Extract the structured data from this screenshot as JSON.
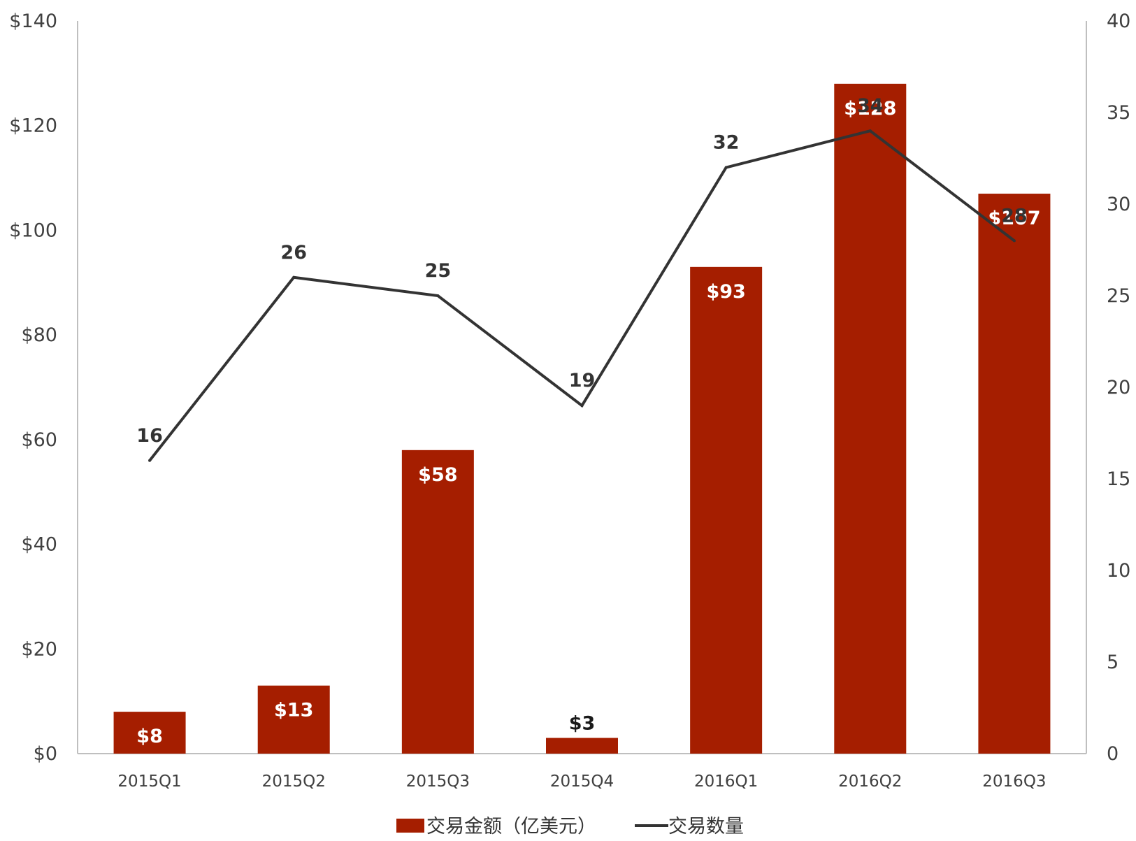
{
  "chart_data": {
    "type": "bar",
    "categories": [
      "2015Q1",
      "2015Q2",
      "2015Q3",
      "2015Q4",
      "2016Q1",
      "2016Q2",
      "2016Q3"
    ],
    "series": [
      {
        "name": "交易金额（亿美元）",
        "type": "bar",
        "axis": "left",
        "values": [
          8,
          13,
          58,
          3,
          93,
          128,
          107
        ],
        "labels": [
          "$8",
          "$13",
          "$58",
          "$3",
          "$93",
          "$128",
          "$107"
        ],
        "color": "#a51e00"
      },
      {
        "name": "交易数量",
        "type": "line",
        "axis": "right",
        "values": [
          16,
          26,
          25,
          19,
          32,
          34,
          28
        ],
        "labels": [
          "16",
          "26",
          "25",
          "19",
          "32",
          "34",
          "28"
        ],
        "color": "#333333"
      }
    ],
    "y_left": {
      "range": [
        0,
        140
      ],
      "ticks": [
        0,
        20,
        40,
        60,
        80,
        100,
        120,
        140
      ],
      "tick_labels": [
        "$0",
        "$20",
        "$40",
        "$60",
        "$80",
        "$100",
        "$120",
        "$140"
      ]
    },
    "y_right": {
      "range": [
        0,
        40
      ],
      "ticks": [
        0,
        5,
        10,
        15,
        20,
        25,
        30,
        35,
        40
      ],
      "tick_labels": [
        "0",
        "5",
        "10",
        "15",
        "20",
        "25",
        "30",
        "35",
        "40"
      ]
    },
    "grid": false,
    "legend": {
      "position": "bottom",
      "items": [
        "交易金额（亿美元）",
        "交易数量"
      ]
    }
  }
}
